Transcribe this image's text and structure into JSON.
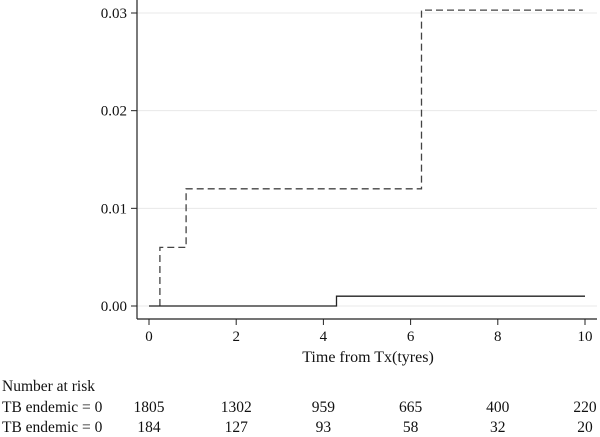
{
  "chart_data": {
    "type": "line",
    "title": "",
    "xlabel": "Time from Tx(tyres)",
    "ylabel": "",
    "xlim": [
      0,
      10
    ],
    "ylim": [
      0,
      0.03
    ],
    "x_ticks": [
      0,
      2,
      4,
      6,
      8,
      10
    ],
    "x_tick_labels": [
      "0",
      "2",
      "4",
      "6",
      "8",
      "10"
    ],
    "y_ticks": [
      0,
      0.01,
      0.02,
      0.03
    ],
    "y_tick_labels": [
      "0.00",
      "0.01",
      "0.02",
      "0.03"
    ],
    "grid": true,
    "step": true,
    "series": [
      {
        "line_style": "dashed",
        "color": "#444444",
        "x": [
          0.25,
          0.25,
          0.85,
          0.85,
          6.25,
          6.25,
          9.95
        ],
        "y": [
          0.0,
          0.006,
          0.006,
          0.012,
          0.012,
          0.0303,
          0.0303
        ]
      },
      {
        "line_style": "solid",
        "color": "#222222",
        "x": [
          0.0,
          4.3,
          4.3,
          10.0
        ],
        "y": [
          0.0,
          0.0,
          0.001,
          0.001
        ]
      }
    ]
  },
  "risk_table": {
    "title": "Number at risk",
    "rows": [
      {
        "label": "TB endemic = 0",
        "values": [
          "1805",
          "1302",
          "959",
          "665",
          "400",
          "220"
        ]
      },
      {
        "label": "TB endemic = 0",
        "values": [
          "184",
          "127",
          "93",
          "58",
          "32",
          "20"
        ]
      }
    ]
  }
}
